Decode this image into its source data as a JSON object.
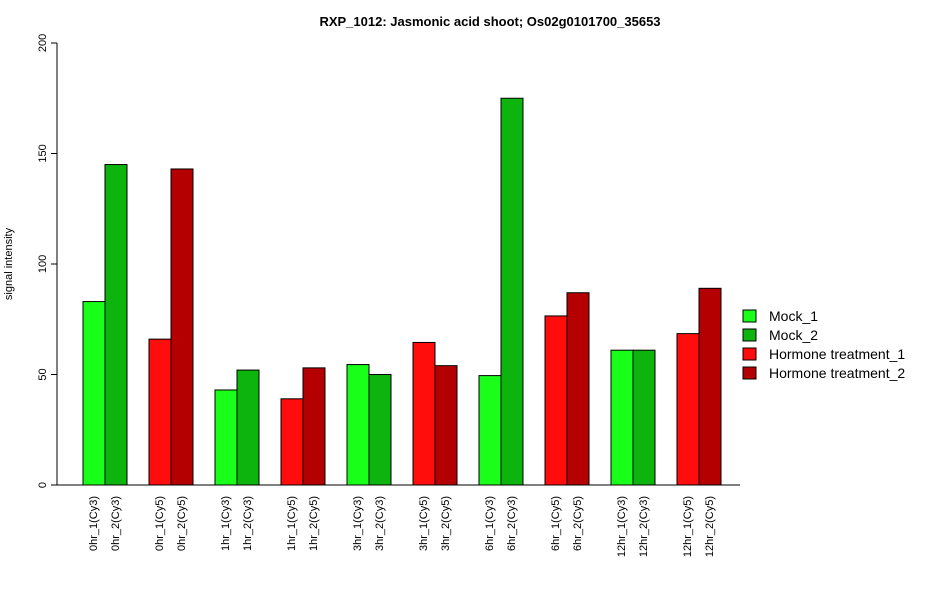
{
  "chart_data": {
    "type": "bar",
    "title": "RXP_1012: Jasmonic acid shoot; Os02g0101700_35653",
    "xlabel": "",
    "ylabel": "signal intensity",
    "ylim": [
      0,
      200
    ],
    "yticks": [
      0,
      50,
      100,
      150,
      200
    ],
    "grid": false,
    "legend_position": "right",
    "legend": [
      {
        "name": "Mock_1",
        "color": "#1AFF1A"
      },
      {
        "name": "Mock_2",
        "color": "#0DB40D"
      },
      {
        "name": "Hormone treatment_1",
        "color": "#FF0D0D"
      },
      {
        "name": "Hormone treatment_2",
        "color": "#B40000"
      }
    ],
    "bars": [
      {
        "label": "0hr_1(Cy3)",
        "value": 83,
        "color": "#1AFF1A"
      },
      {
        "label": "0hr_2(Cy3)",
        "value": 145,
        "color": "#0DB40D"
      },
      {
        "label": "0hr_1(Cy5)",
        "value": 66,
        "color": "#FF0D0D"
      },
      {
        "label": "0hr_2(Cy5)",
        "value": 143,
        "color": "#B40000"
      },
      {
        "label": "1hr_1(Cy3)",
        "value": 43,
        "color": "#1AFF1A"
      },
      {
        "label": "1hr_2(Cy3)",
        "value": 52,
        "color": "#0DB40D"
      },
      {
        "label": "1hr_1(Cy5)",
        "value": 39,
        "color": "#FF0D0D"
      },
      {
        "label": "1hr_2(Cy5)",
        "value": 53,
        "color": "#B40000"
      },
      {
        "label": "3hr_1(Cy3)",
        "value": 54.5,
        "color": "#1AFF1A"
      },
      {
        "label": "3hr_2(Cy3)",
        "value": 50,
        "color": "#0DB40D"
      },
      {
        "label": "3hr_1(Cy5)",
        "value": 64.5,
        "color": "#FF0D0D"
      },
      {
        "label": "3hr_2(Cy5)",
        "value": 54,
        "color": "#B40000"
      },
      {
        "label": "6hr_1(Cy3)",
        "value": 49.5,
        "color": "#1AFF1A"
      },
      {
        "label": "6hr_2(Cy3)",
        "value": 175,
        "color": "#0DB40D"
      },
      {
        "label": "6hr_1(Cy5)",
        "value": 76.5,
        "color": "#FF0D0D"
      },
      {
        "label": "6hr_2(Cy5)",
        "value": 87,
        "color": "#B40000"
      },
      {
        "label": "12hr_1(Cy3)",
        "value": 61,
        "color": "#1AFF1A"
      },
      {
        "label": "12hr_2(Cy3)",
        "value": 61,
        "color": "#0DB40D"
      },
      {
        "label": "12hr_1(Cy5)",
        "value": 68.5,
        "color": "#FF0D0D"
      },
      {
        "label": "12hr_2(Cy5)",
        "value": 89,
        "color": "#B40000"
      }
    ]
  }
}
